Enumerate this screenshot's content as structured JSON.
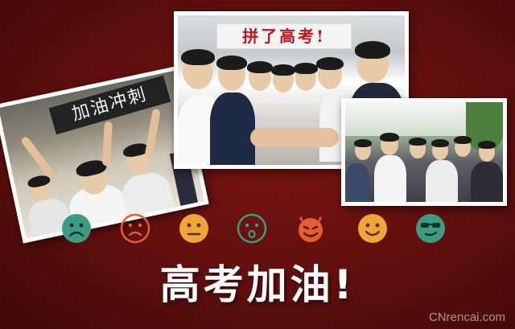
{
  "photos": {
    "left": {
      "banner_text": "加油冲刺"
    },
    "center": {
      "banner_text": "拼了高考!"
    },
    "right": {}
  },
  "emoji_row": [
    {
      "name": "sad-face-icon",
      "color": "#3c9b83"
    },
    {
      "name": "frown-face-icon",
      "color": "#e85d2c"
    },
    {
      "name": "neutral-face-icon",
      "color": "#f0a53a"
    },
    {
      "name": "surprised-face-icon",
      "color": "#3c9b83"
    },
    {
      "name": "devil-grin-icon",
      "color": "#e85d2c"
    },
    {
      "name": "smile-face-icon",
      "color": "#f0a53a"
    },
    {
      "name": "cool-sunglasses-icon",
      "color": "#3c9b83"
    }
  ],
  "slogan": "高考加油!",
  "watermark": "CNrencai.com",
  "colors": {
    "background": "#5e0f0d",
    "teal": "#3c9b83",
    "orange": "#e85d2c",
    "amber": "#f0a53a"
  }
}
